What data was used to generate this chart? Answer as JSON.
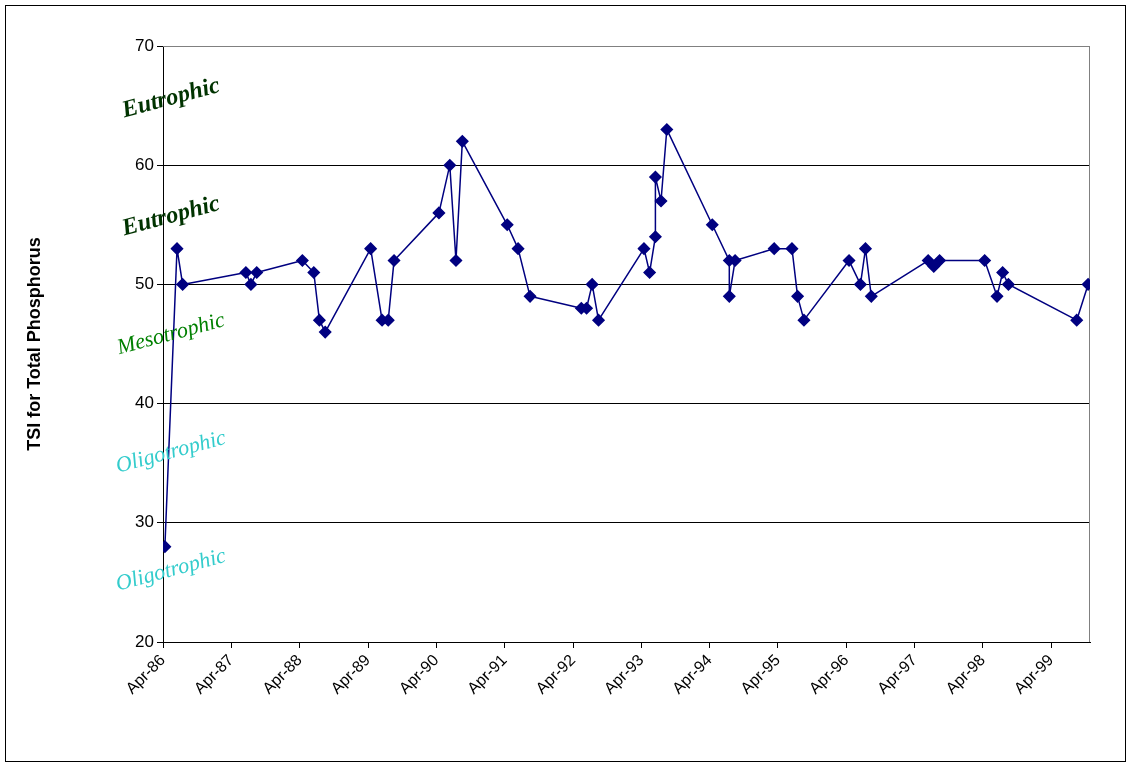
{
  "chart_data": {
    "type": "line",
    "ylabel": "TSI for Total Phosphorus",
    "series": [
      {
        "color": "#000080",
        "x": [
          "1986-04-11",
          "1986-06-15",
          "1986-07-15",
          "1987-06-18",
          "1987-07-15",
          "1987-08-15",
          "1988-04-15",
          "1988-06-15",
          "1988-07-15",
          "1988-08-15",
          "1989-04-15",
          "1989-06-15",
          "1989-07-18",
          "1989-08-18",
          "1990-04-15",
          "1990-06-12",
          "1990-07-15",
          "1990-08-18",
          "1991-04-15",
          "1991-06-12",
          "1991-08-15",
          "1992-05-15",
          "1992-06-12",
          "1992-07-12",
          "1992-08-15",
          "1993-04-15",
          "1993-05-15",
          "1993-06-15",
          "1993-06-15",
          "1993-07-15",
          "1993-08-15",
          "1994-04-15",
          "1994-07-15",
          "1994-07-15",
          "1994-08-15",
          "1995-03-12",
          "1995-06-15",
          "1995-07-15",
          "1995-08-18",
          "1996-04-15",
          "1996-06-15",
          "1996-07-12",
          "1996-08-12",
          "1997-06-12",
          "1997-07-12",
          "1997-08-12",
          "1998-04-10",
          "1998-06-15",
          "1998-07-15",
          "1998-08-15",
          "1999-08-15",
          "1999-10-15"
        ],
        "values": [
          28,
          53,
          50,
          51,
          50,
          51,
          52,
          51,
          47,
          46,
          53,
          47,
          47,
          52,
          56,
          60,
          52,
          62,
          55,
          53,
          49,
          48,
          48,
          50,
          47,
          53,
          51,
          54,
          59,
          57,
          63,
          55,
          52,
          49,
          52,
          53,
          53,
          49,
          47,
          52,
          50,
          53,
          49,
          52,
          51.5,
          52,
          52,
          49,
          51,
          50,
          47,
          50
        ]
      }
    ],
    "xlim": [
      "1986-04-01",
      "1999-10-25"
    ],
    "xticks": [
      {
        "value": "1986-04-01",
        "label": "Apr-86"
      },
      {
        "value": "1987-04-01",
        "label": "Apr-87"
      },
      {
        "value": "1988-04-01",
        "label": "Apr-88"
      },
      {
        "value": "1989-04-01",
        "label": "Apr-89"
      },
      {
        "value": "1990-04-01",
        "label": "Apr-90"
      },
      {
        "value": "1991-04-01",
        "label": "Apr-91"
      },
      {
        "value": "1992-04-01",
        "label": "Apr-92"
      },
      {
        "value": "1993-04-01",
        "label": "Apr-93"
      },
      {
        "value": "1994-04-01",
        "label": "Apr-94"
      },
      {
        "value": "1995-04-01",
        "label": "Apr-95"
      },
      {
        "value": "1996-04-01",
        "label": "Apr-96"
      },
      {
        "value": "1997-04-01",
        "label": "Apr-97"
      },
      {
        "value": "1998-04-01",
        "label": "Apr-98"
      },
      {
        "value": "1999-04-01",
        "label": "Apr-99"
      }
    ],
    "ylim": [
      20,
      70
    ],
    "yticks": [
      20,
      30,
      40,
      50,
      60,
      70
    ],
    "grid": "y",
    "marker": "diamond",
    "line_style": "solid",
    "legend": false,
    "annotations": [
      "Eutrophic",
      "Eutrophic",
      "Mesotrophic",
      "Oligotrophic",
      "Oligotrophic"
    ]
  }
}
